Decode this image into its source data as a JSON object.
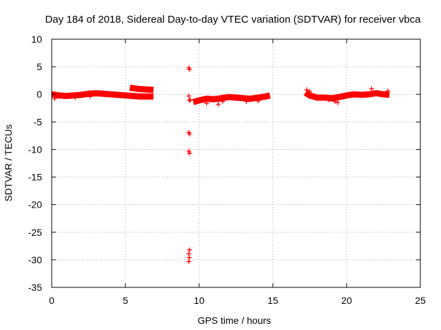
{
  "chart_data": {
    "type": "scatter",
    "title": "Day 184 of 2018, Sidereal Day-to-day VTEC variation (SDTVAR) for receiver vbca",
    "xlabel": "GPS time / hours",
    "ylabel": "SDTVAR / TECUs",
    "xlim": [
      0,
      25
    ],
    "ylim": [
      -35,
      10
    ],
    "x_ticks": [
      "0",
      "5",
      "10",
      "15",
      "20",
      "25"
    ],
    "y_ticks": [
      "10",
      "5",
      "0",
      "-5",
      "-10",
      "-15",
      "-20",
      "-25",
      "-30",
      "-35"
    ],
    "grid": true,
    "series_color": "#ff0000",
    "marker": "plus",
    "dense_segments": [
      {
        "name": "segment-1",
        "x": [
          0.0,
          0.5,
          1.0,
          1.5,
          2.0,
          2.5,
          3.0,
          3.5,
          4.0,
          4.5,
          5.0,
          5.5,
          6.0,
          6.5,
          6.9
        ],
        "y": [
          0.0,
          -0.2,
          -0.3,
          -0.2,
          -0.1,
          0.1,
          0.2,
          0.1,
          0.0,
          -0.1,
          -0.2,
          -0.3,
          -0.4,
          -0.4,
          -0.4
        ]
      },
      {
        "name": "segment-1-upper",
        "x": [
          5.3,
          5.8,
          6.3,
          6.9
        ],
        "y": [
          1.2,
          1.0,
          0.9,
          0.8
        ]
      },
      {
        "name": "segment-2",
        "x": [
          9.6,
          10.0,
          10.5,
          11.0,
          11.5,
          12.0,
          12.5,
          13.0,
          13.5,
          14.0,
          14.5,
          14.8
        ],
        "y": [
          -1.4,
          -1.1,
          -0.8,
          -0.9,
          -0.7,
          -0.5,
          -0.6,
          -0.7,
          -0.8,
          -0.6,
          -0.4,
          -0.2
        ]
      },
      {
        "name": "segment-3",
        "x": [
          17.2,
          17.5,
          18.0,
          18.5,
          19.0,
          19.5,
          20.0,
          20.5,
          21.0,
          21.5,
          22.0,
          22.5,
          22.9
        ],
        "y": [
          0.3,
          -0.2,
          -0.6,
          -0.6,
          -0.7,
          -0.5,
          -0.2,
          0.0,
          -0.1,
          0.0,
          0.2,
          0.0,
          -0.1
        ]
      }
    ],
    "points": [
      {
        "x": 9.3,
        "y": 4.8
      },
      {
        "x": 9.35,
        "y": 4.5
      },
      {
        "x": 9.3,
        "y": -0.3
      },
      {
        "x": 9.35,
        "y": -1.1
      },
      {
        "x": 9.4,
        "y": -1.0
      },
      {
        "x": 9.3,
        "y": -6.9
      },
      {
        "x": 9.35,
        "y": -7.2
      },
      {
        "x": 9.3,
        "y": -10.3
      },
      {
        "x": 9.35,
        "y": -10.7
      },
      {
        "x": 9.35,
        "y": -28.2
      },
      {
        "x": 9.3,
        "y": -28.9
      },
      {
        "x": 9.33,
        "y": -29.6
      },
      {
        "x": 9.3,
        "y": -30.3
      },
      {
        "x": 10.5,
        "y": -1.6
      },
      {
        "x": 11.3,
        "y": -1.8
      },
      {
        "x": 11.6,
        "y": -1.3
      },
      {
        "x": 13.2,
        "y": -1.3
      },
      {
        "x": 14.0,
        "y": -1.2
      },
      {
        "x": 0.2,
        "y": -0.8
      },
      {
        "x": 1.6,
        "y": -0.6
      },
      {
        "x": 2.6,
        "y": -0.4
      },
      {
        "x": 17.3,
        "y": 0.8
      },
      {
        "x": 17.5,
        "y": 0.5
      },
      {
        "x": 18.8,
        "y": -1.0
      },
      {
        "x": 19.2,
        "y": -1.3
      },
      {
        "x": 19.4,
        "y": -1.5
      },
      {
        "x": 21.7,
        "y": 1.0
      },
      {
        "x": 22.8,
        "y": 0.6
      }
    ]
  }
}
